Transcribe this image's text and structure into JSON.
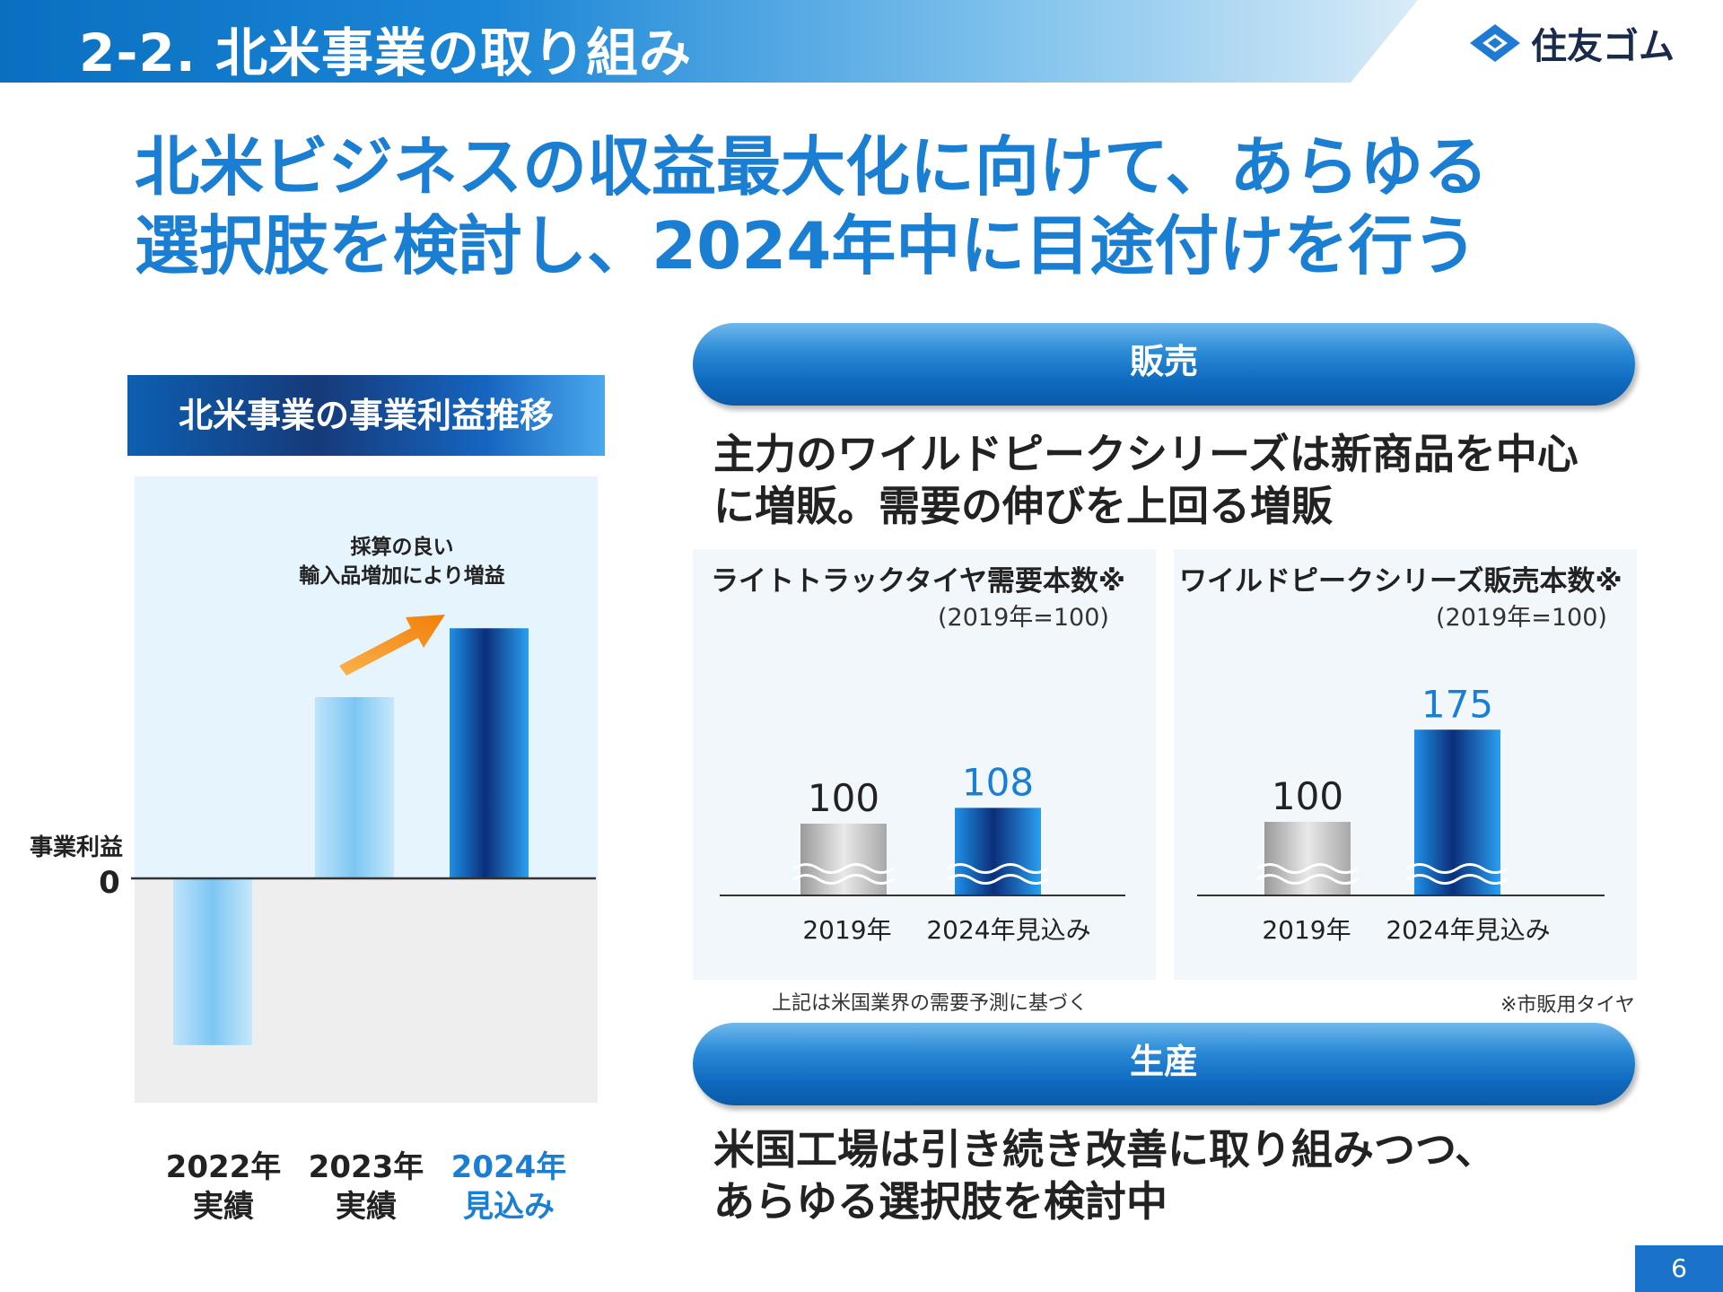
{
  "header": {
    "title": "2-2. 北米事業の取り組み",
    "company": "住友ゴム"
  },
  "headline": {
    "line1": "北米ビジネスの収益最大化に向けて、あらゆる",
    "line2": "選択肢を検討し、2024年中に目途付けを行う"
  },
  "left_chart": {
    "title": "北米事業の事業利益推移",
    "annotation_line1": "採算の良い",
    "annotation_line2": "輸入品増加により増益"
  },
  "sales": {
    "label": "販売",
    "text_line1": "主力のワイルドピークシリーズは新商品を中心",
    "text_line2": "に増販。需要の伸びを上回る増販",
    "demand_note": "上記は米国業界の需要予測に基づく",
    "market_note": "※市販用タイヤ"
  },
  "production": {
    "label": "生産",
    "text_line1": "米国工場は引き続き改善に取り組みつつ、",
    "text_line2": "あらゆる選択肢を検討中"
  },
  "page_number": "6",
  "colors": {
    "brand_blue": "#1a7fd3",
    "dark_blue": "#0b4ea2",
    "light_blue": "#8fd0f5",
    "gray_bar": "#b8b8b8"
  },
  "chart_data": [
    {
      "type": "bar",
      "title": "北米事業の事業利益推移",
      "ylabel": "事業利益",
      "ytick": "0",
      "categories": [
        "2022年\n実績",
        "2023年\n実績",
        "2024年\n見込み"
      ],
      "category_lines": [
        [
          "2022年",
          "実績"
        ],
        [
          "2023年",
          "実績"
        ],
        [
          "2024年",
          "見込み"
        ]
      ],
      "values": [
        -0.92,
        1.0,
        1.38
      ],
      "value_note": "relative magnitudes; no numeric scale printed",
      "highlight_index": 2
    },
    {
      "type": "bar",
      "title": "ライトトラックタイヤ需要本数※",
      "subtitle": "(2019年=100)",
      "categories": [
        "2019年",
        "2024年見込み"
      ],
      "values": [
        100,
        108
      ],
      "value_labels": [
        "100",
        "108"
      ],
      "axis_broken": true
    },
    {
      "type": "bar",
      "title": "ワイルドピークシリーズ販売本数※",
      "subtitle": "(2019年=100)",
      "categories": [
        "2019年",
        "2024年見込み"
      ],
      "values": [
        100,
        175
      ],
      "value_labels": [
        "100",
        "175"
      ],
      "axis_broken": true
    }
  ]
}
